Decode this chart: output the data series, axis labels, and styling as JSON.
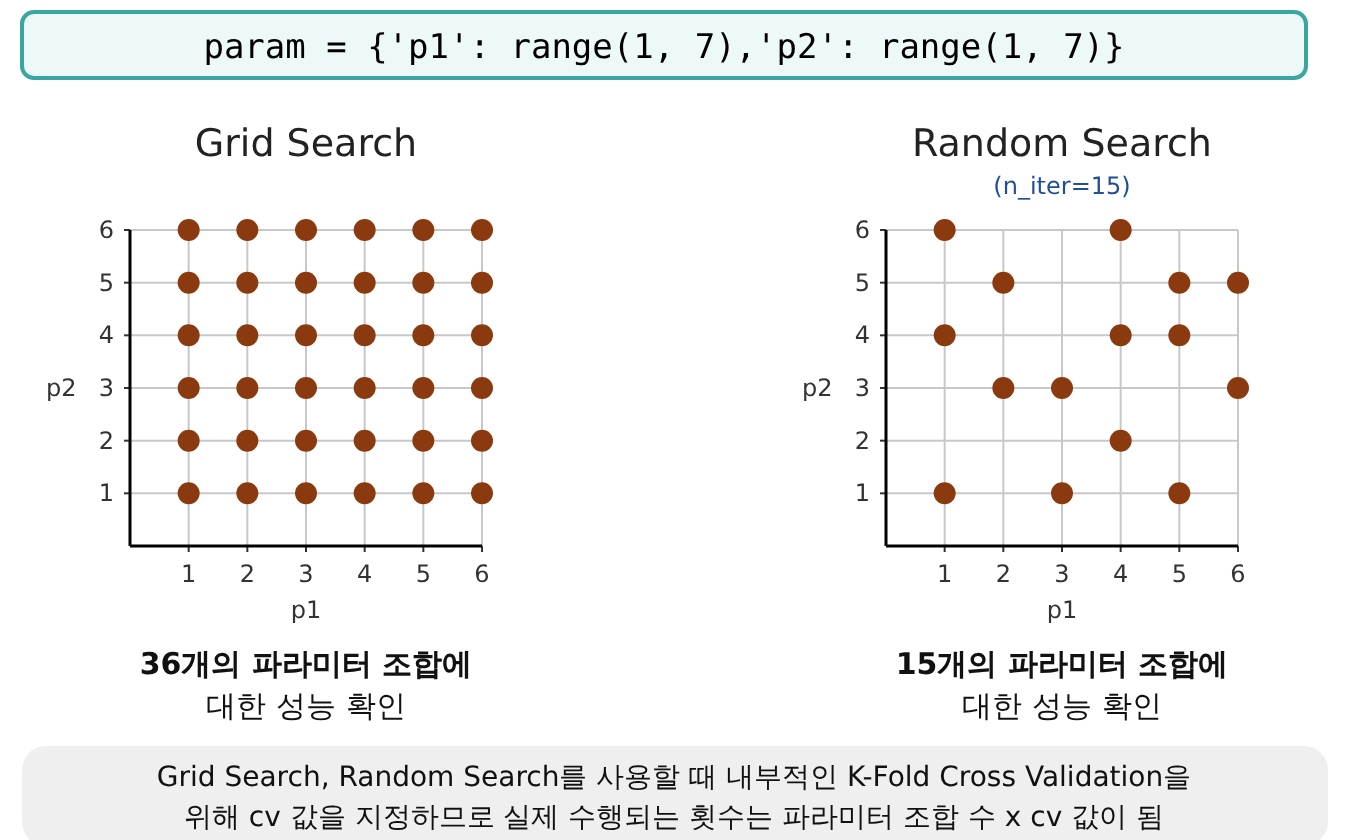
{
  "chart_data": [
    {
      "type": "scatter",
      "title": "Grid Search",
      "xlabel": "p1",
      "ylabel": "p2",
      "color": "#8b3a0f",
      "marker": "circle",
      "grid": true,
      "x": [
        1,
        2,
        3,
        4,
        5,
        6,
        1,
        2,
        3,
        4,
        5,
        6,
        1,
        2,
        3,
        4,
        5,
        6,
        1,
        2,
        3,
        4,
        5,
        6,
        1,
        2,
        3,
        4,
        5,
        6,
        1,
        2,
        3,
        4,
        5,
        6
      ],
      "values": [
        6,
        6,
        6,
        6,
        6,
        6,
        5,
        5,
        5,
        5,
        5,
        5,
        4,
        4,
        4,
        4,
        4,
        4,
        3,
        3,
        3,
        3,
        3,
        3,
        2,
        2,
        2,
        2,
        2,
        2,
        1,
        1,
        1,
        1,
        1,
        1
      ],
      "xlim": [
        0,
        6
      ],
      "ylim": [
        0,
        6
      ],
      "xticks": [
        1,
        2,
        3,
        4,
        5,
        6
      ],
      "yticks": [
        1,
        2,
        3,
        4,
        5,
        6
      ],
      "annotations": [
        "param = {'p1': range(1, 7),'p2': range(1, 7)}",
        "36개의 파라미터 조합에",
        "대한 성능 확인",
        "Grid Search, Random Search를 사용할 때 내부적인 K-Fold Cross Validation을",
        "위해 cv 값을 지정하므로 실제 수행되는 횟수는 파라미터 조합 수 x cv 값이 됨"
      ]
    },
    {
      "type": "scatter",
      "title": "Random Search",
      "subtitle": "(n_iter=15)",
      "xlabel": "p1",
      "ylabel": "p2",
      "color": "#8b3a0f",
      "marker": "circle",
      "grid": true,
      "x": [
        1,
        4,
        2,
        5,
        6,
        1,
        4,
        5,
        2,
        3,
        6,
        4,
        1,
        3,
        5
      ],
      "values": [
        6,
        6,
        5,
        5,
        5,
        4,
        4,
        4,
        3,
        3,
        3,
        2,
        1,
        1,
        1
      ],
      "xlim": [
        0,
        6
      ],
      "ylim": [
        0,
        6
      ],
      "xticks": [
        1,
        2,
        3,
        4,
        5,
        6
      ],
      "yticks": [
        1,
        2,
        3,
        4,
        5,
        6
      ],
      "annotations": [
        "15개의 파라미터 조합에",
        "대한 성능 확인"
      ]
    }
  ]
}
